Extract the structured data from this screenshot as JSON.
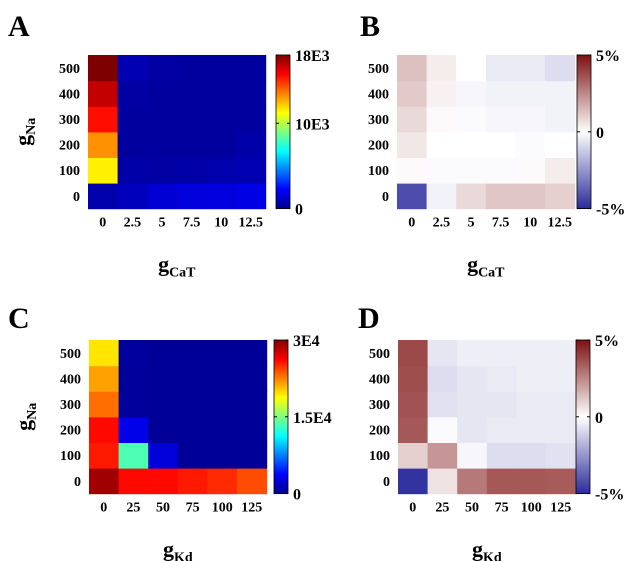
{
  "colors": {
    "jet": [
      "#00008f",
      "#0000ff",
      "#007fff",
      "#00ffff",
      "#7fff7f",
      "#ffff00",
      "#ff7f00",
      "#ff0000",
      "#7f0000"
    ],
    "diverging": [
      "#2b2b9b",
      "#ffffff",
      "#7d1010"
    ]
  },
  "chart_data": [
    {
      "panel": "A",
      "type": "heatmap",
      "colormap": "jet",
      "x_categories": [
        "0",
        "2.5",
        "5",
        "7.5",
        "10",
        "12.5"
      ],
      "y_categories": [
        "0",
        "100",
        "200",
        "300",
        "400",
        "500"
      ],
      "xlabel": "g",
      "xlabel_sub": "CaT",
      "ylabel": "g",
      "ylabel_sub": "Na",
      "vmin": 0,
      "vmax": 18000,
      "colorbar_ticks": [
        {
          "value": 18000,
          "label": "18E3"
        },
        {
          "value": 10000,
          "label": "10E3"
        },
        {
          "value": 0,
          "label": "0"
        }
      ],
      "values": [
        [
          600,
          900,
          1400,
          1500,
          1600,
          1700
        ],
        [
          11500,
          500,
          400,
          500,
          600,
          700
        ],
        [
          13200,
          300,
          300,
          300,
          300,
          500
        ],
        [
          15500,
          300,
          300,
          300,
          300,
          300
        ],
        [
          16800,
          400,
          300,
          300,
          300,
          300
        ],
        [
          18000,
          700,
          400,
          300,
          300,
          300
        ]
      ]
    },
    {
      "panel": "B",
      "type": "heatmap",
      "colormap": "diverging",
      "x_categories": [
        "0",
        "2.5",
        "5",
        "7.5",
        "10",
        "12.5"
      ],
      "y_categories": [
        "0",
        "100",
        "200",
        "300",
        "400",
        "500"
      ],
      "xlabel": "g",
      "xlabel_sub": "CaT",
      "ylabel": "",
      "ylabel_sub": "",
      "vmin": -5,
      "vmax": 5,
      "colorbar_ticks": [
        {
          "value": 5,
          "label": "5%"
        },
        {
          "value": 0,
          "label": "0"
        },
        {
          "value": -5,
          "label": "-5%"
        }
      ],
      "values": [
        [
          -4.2,
          -0.3,
          0.8,
          1.2,
          1.2,
          1.0
        ],
        [
          0.1,
          -0.1,
          -0.1,
          -0.1,
          0.1,
          0.4
        ],
        [
          0.5,
          0.0,
          0.0,
          0.0,
          -0.1,
          0.0
        ],
        [
          0.8,
          0.1,
          -0.1,
          -0.2,
          -0.2,
          -0.3
        ],
        [
          1.1,
          0.3,
          -0.2,
          -0.3,
          -0.3,
          -0.3
        ],
        [
          1.3,
          0.4,
          0.0,
          -0.5,
          -0.5,
          -0.8
        ]
      ]
    },
    {
      "panel": "C",
      "type": "heatmap",
      "colormap": "jet",
      "x_categories": [
        "0",
        "25",
        "50",
        "75",
        "100",
        "125"
      ],
      "y_categories": [
        "0",
        "100",
        "200",
        "300",
        "400",
        "500"
      ],
      "xlabel": "g",
      "xlabel_sub": "Kd",
      "ylabel": "g",
      "ylabel_sub": "Na",
      "vmin": 0,
      "vmax": 30000,
      "colorbar_ticks": [
        {
          "value": 30000,
          "label": "3E4"
        },
        {
          "value": 15000,
          "label": "1.5E4"
        },
        {
          "value": 0,
          "label": "0"
        }
      ],
      "values": [
        [
          29000,
          26000,
          26000,
          25500,
          25000,
          24000
        ],
        [
          25500,
          13500,
          2500,
          300,
          300,
          300
        ],
        [
          26000,
          3000,
          300,
          300,
          300,
          300
        ],
        [
          23000,
          400,
          300,
          300,
          300,
          300
        ],
        [
          21500,
          400,
          300,
          300,
          300,
          300
        ],
        [
          19500,
          500,
          300,
          300,
          300,
          300
        ]
      ]
    },
    {
      "panel": "D",
      "type": "heatmap",
      "colormap": "diverging",
      "x_categories": [
        "0",
        "25",
        "50",
        "75",
        "100",
        "125"
      ],
      "y_categories": [
        "0",
        "100",
        "200",
        "300",
        "400",
        "500"
      ],
      "xlabel": "g",
      "xlabel_sub": "Kd",
      "ylabel": "",
      "ylabel_sub": "",
      "vmin": -5,
      "vmax": 5,
      "colorbar_ticks": [
        {
          "value": 5,
          "label": "5%"
        },
        {
          "value": 0,
          "label": "0"
        },
        {
          "value": -5,
          "label": "-5%"
        }
      ],
      "values": [
        [
          -4.8,
          0.6,
          2.8,
          3.5,
          3.5,
          3.4
        ],
        [
          1.0,
          2.2,
          -0.2,
          -0.8,
          -0.8,
          -0.7
        ],
        [
          3.5,
          -0.1,
          -0.6,
          -0.5,
          -0.5,
          -0.5
        ],
        [
          3.6,
          -0.7,
          -0.6,
          -0.6,
          -0.5,
          -0.5
        ],
        [
          3.7,
          -0.8,
          -0.6,
          -0.5,
          -0.4,
          -0.4
        ],
        [
          3.8,
          -0.6,
          -0.4,
          -0.4,
          -0.4,
          -0.4
        ]
      ]
    }
  ]
}
